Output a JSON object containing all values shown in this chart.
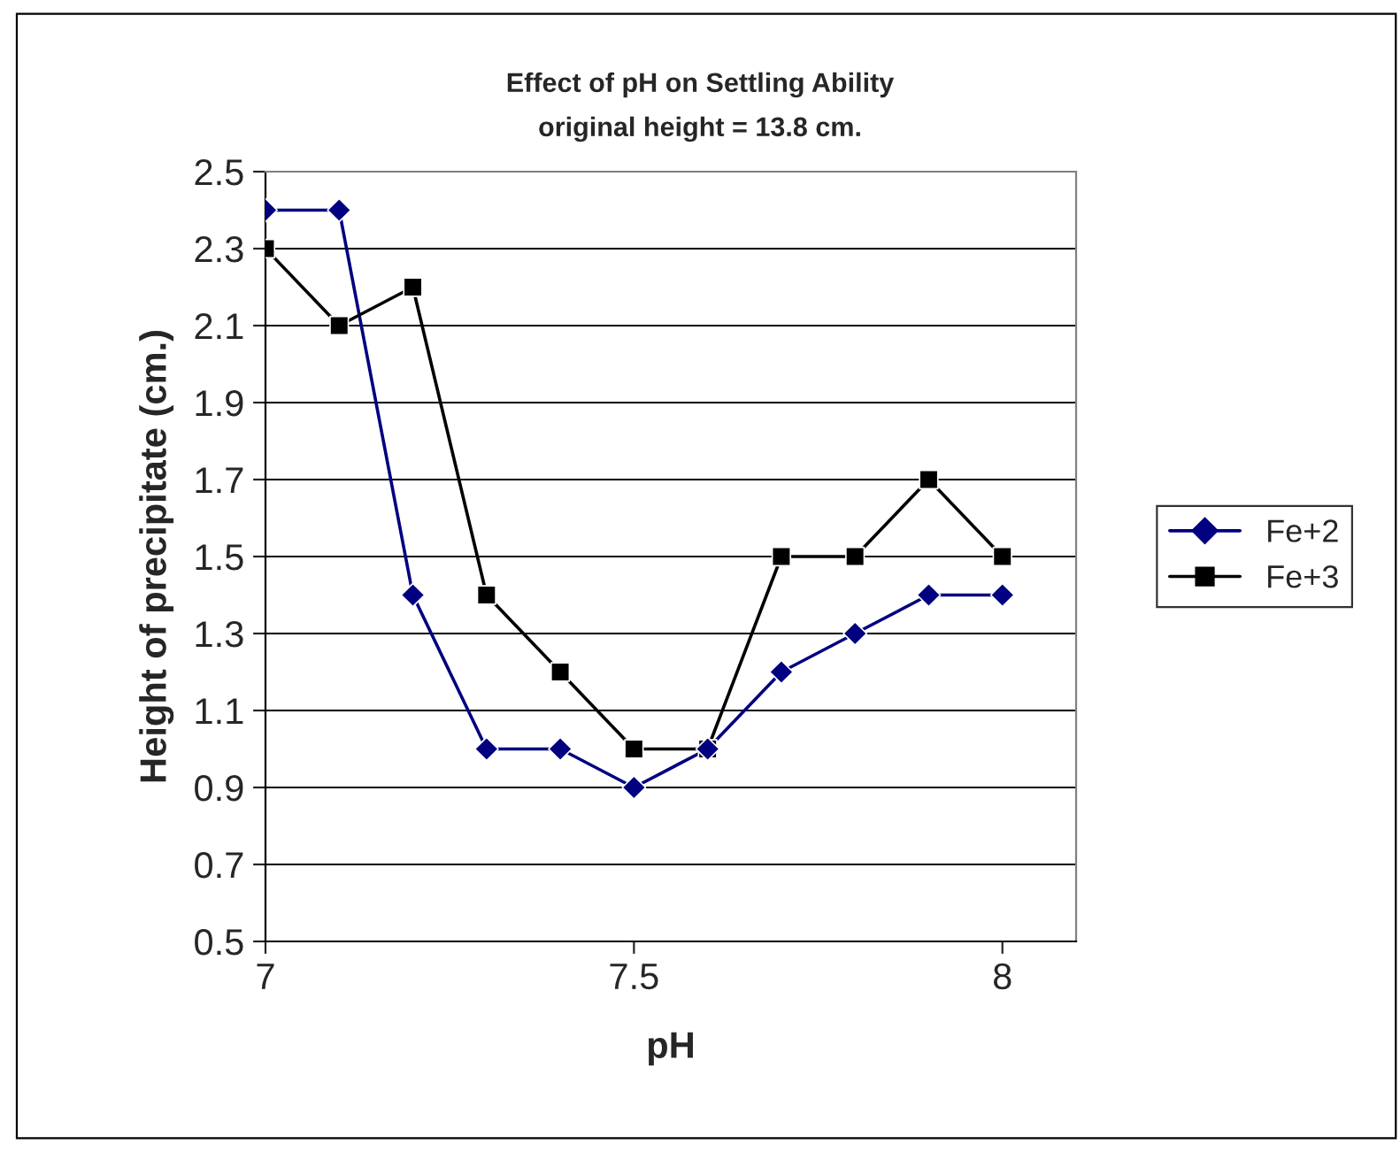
{
  "chart_data": {
    "type": "line",
    "title": "Effect of pH on Settling Ability",
    "subtitle": "original height = 13.8 cm.",
    "xlabel": "pH",
    "ylabel": "Height of precipitate (cm.)",
    "x": [
      7.0,
      7.1,
      7.2,
      7.3,
      7.4,
      7.5,
      7.6,
      7.7,
      7.8,
      7.9,
      8.0
    ],
    "series": [
      {
        "name": "Fe+2",
        "color": "#000080",
        "marker": "diamond",
        "values": [
          2.4,
          2.4,
          1.4,
          1.0,
          1.0,
          0.9,
          1.0,
          1.2,
          1.3,
          1.4,
          1.4
        ]
      },
      {
        "name": "Fe+3",
        "color": "#000000",
        "marker": "square",
        "values": [
          2.3,
          2.1,
          2.2,
          1.4,
          1.2,
          1.0,
          1.0,
          1.5,
          1.5,
          1.7,
          1.5
        ]
      }
    ],
    "xlim": [
      7,
      8.1
    ],
    "xticks": [
      7,
      7.5,
      8
    ],
    "ylim": [
      0.5,
      2.5
    ],
    "yticks": [
      0.5,
      0.7,
      0.9,
      1.1,
      1.3,
      1.5,
      1.7,
      1.9,
      2.1,
      2.3,
      2.5
    ],
    "grid": "y",
    "legend": "right",
    "line_style": "solid"
  }
}
